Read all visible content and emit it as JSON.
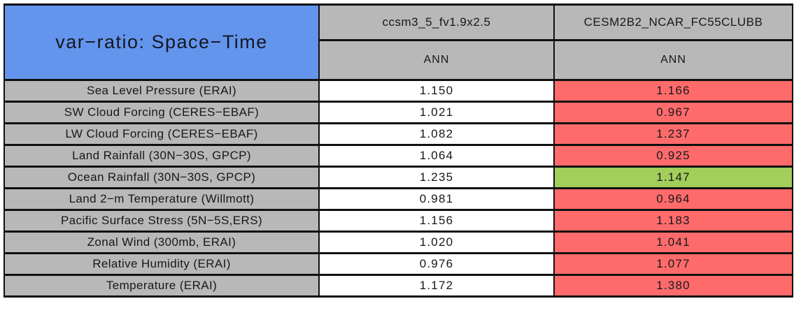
{
  "colors": {
    "blue": "#6495ED",
    "gray": "#B8B8B8",
    "red": "#FF6B6B",
    "green": "#A2CE5A",
    "white": "#FFFFFF",
    "border": "#101010"
  },
  "styles": {
    "title_bg": "blue",
    "model_bg": "gray",
    "label_bg": "gray"
  },
  "chart_data": {
    "type": "table",
    "title": "var−ratio: Space−Time",
    "columns": [
      {
        "model": "ccsm3_5_fv1.9x2.5",
        "season": "ANN"
      },
      {
        "model": "CESM2B2_NCAR_FC55CLUBB",
        "season": "ANN"
      }
    ],
    "rows": [
      {
        "label": "Sea Level Pressure (ERAI)",
        "v1": "1.150",
        "v2": "1.166",
        "v1_bg": "white",
        "v2_bg": "red"
      },
      {
        "label": "SW Cloud Forcing (CERES−EBAF)",
        "v1": "1.021",
        "v2": "0.967",
        "v1_bg": "white",
        "v2_bg": "red"
      },
      {
        "label": "LW Cloud Forcing (CERES−EBAF)",
        "v1": "1.082",
        "v2": "1.237",
        "v1_bg": "white",
        "v2_bg": "red"
      },
      {
        "label": "Land Rainfall (30N−30S, GPCP)",
        "v1": "1.064",
        "v2": "0.925",
        "v1_bg": "white",
        "v2_bg": "red"
      },
      {
        "label": "Ocean Rainfall (30N−30S, GPCP)",
        "v1": "1.235",
        "v2": "1.147",
        "v1_bg": "white",
        "v2_bg": "green"
      },
      {
        "label": "Land 2−m Temperature (Willmott)",
        "v1": "0.981",
        "v2": "0.964",
        "v1_bg": "white",
        "v2_bg": "red"
      },
      {
        "label": "Pacific Surface Stress (5N−5S,ERS)",
        "v1": "1.156",
        "v2": "1.183",
        "v1_bg": "white",
        "v2_bg": "red"
      },
      {
        "label": "Zonal Wind (300mb, ERAI)",
        "v1": "1.020",
        "v2": "1.041",
        "v1_bg": "white",
        "v2_bg": "red"
      },
      {
        "label": "Relative Humidity (ERAI)",
        "v1": "0.976",
        "v2": "1.077",
        "v1_bg": "white",
        "v2_bg": "red"
      },
      {
        "label": "Temperature (ERAI)",
        "v1": "1.172",
        "v2": "1.380",
        "v1_bg": "white",
        "v2_bg": "red"
      }
    ]
  }
}
